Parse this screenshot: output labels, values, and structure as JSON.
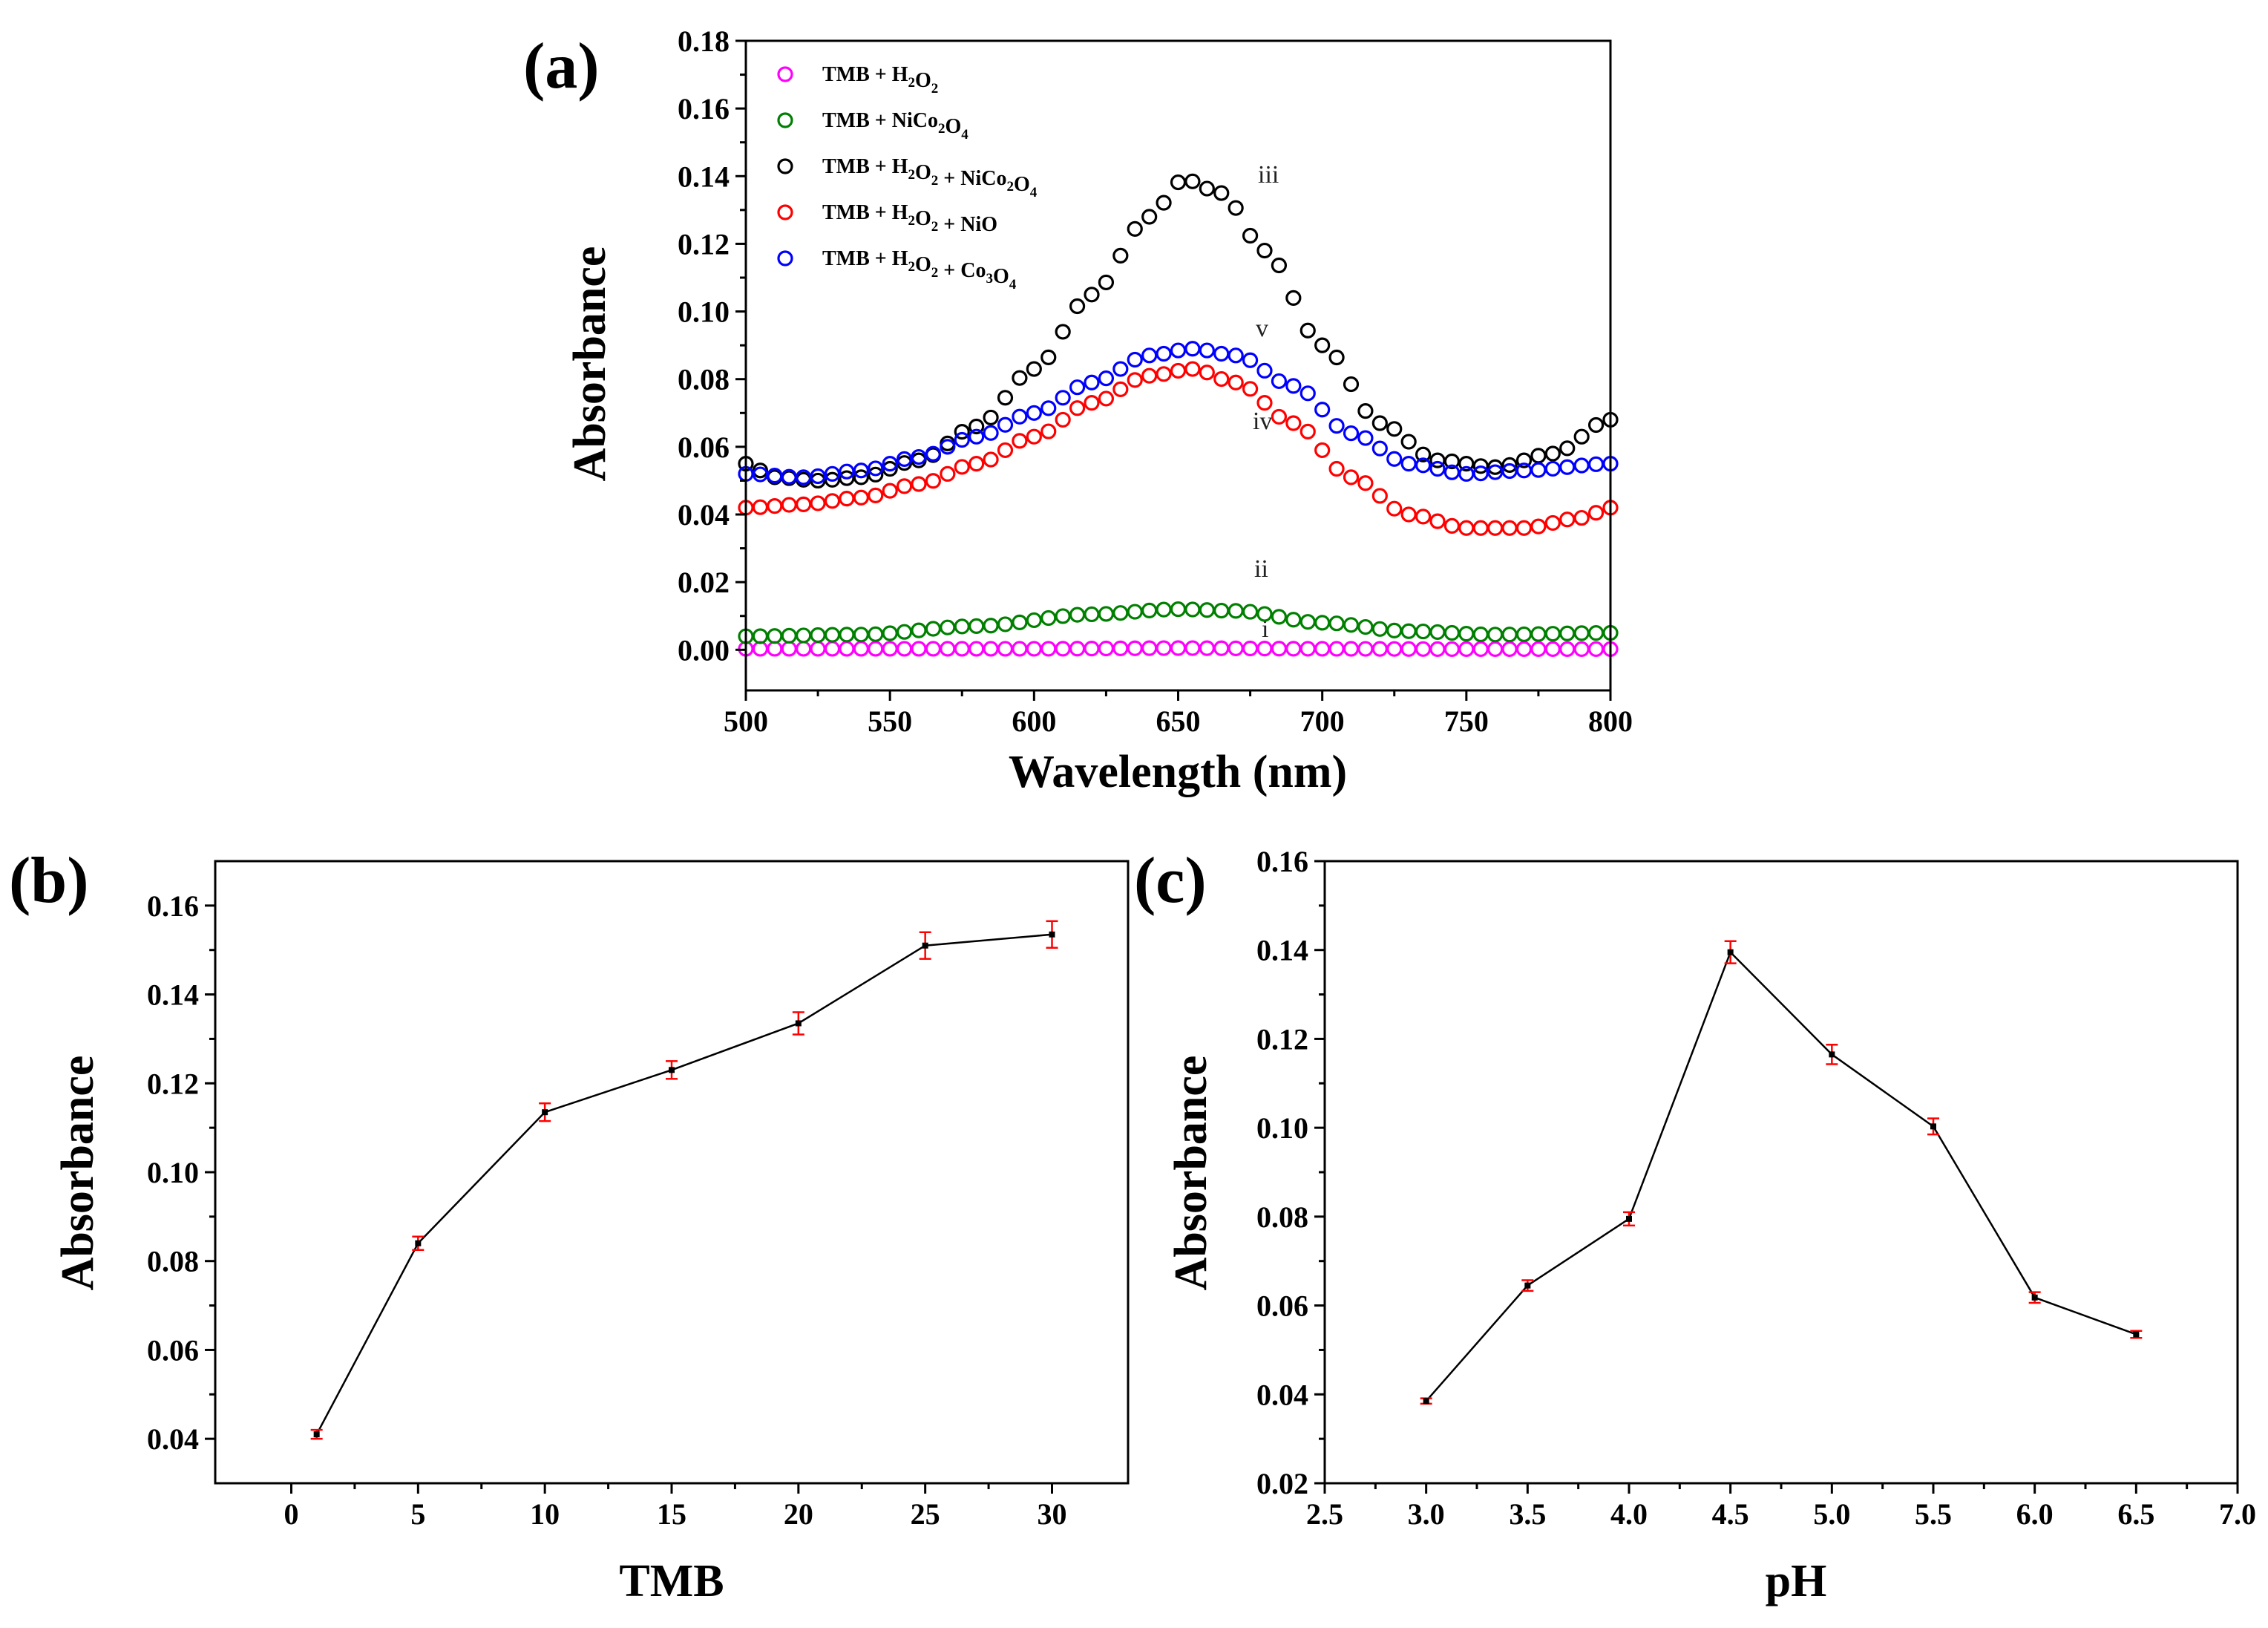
{
  "chart_data": [
    {
      "panel_label": "(a)",
      "type": "scatter",
      "xlabel": "Wavelength (nm)",
      "ylabel": "Absorbance",
      "xlim": [
        500,
        800
      ],
      "ylim": [
        -0.012,
        0.18
      ],
      "xticks": [
        "500",
        "550",
        "600",
        "650",
        "700",
        "750",
        "800"
      ],
      "yticks": [
        "0.00",
        "0.02",
        "0.04",
        "0.06",
        "0.08",
        "0.10",
        "0.12",
        "0.14",
        "0.16",
        "0.18"
      ],
      "series": [
        {
          "name": "TMB + H2O2",
          "legend_main": "TMB + H",
          "legend_sub": [
            "2",
            "O",
            "2"
          ],
          "label": "i",
          "color": "#ff00ff",
          "anchors": [
            [
              500,
              0.0003
            ],
            [
              550,
              0.0003
            ],
            [
              600,
              0.0003
            ],
            [
              650,
              0.0005
            ],
            [
              700,
              0.0003
            ],
            [
              750,
              0.0002
            ],
            [
              800,
              0.0002
            ]
          ]
        },
        {
          "name": "TMB + NiCo2O4",
          "label": "ii",
          "color": "#008000",
          "anchors": [
            [
              500,
              0.004
            ],
            [
              540,
              0.0045
            ],
            [
              580,
              0.007
            ],
            [
              620,
              0.0105
            ],
            [
              650,
              0.012
            ],
            [
              670,
              0.0115
            ],
            [
              700,
              0.008
            ],
            [
              730,
              0.0055
            ],
            [
              760,
              0.0045
            ],
            [
              800,
              0.005
            ]
          ]
        },
        {
          "name": "TMB + H2O2 + NiCo2O4",
          "label": "iii",
          "color": "#000000",
          "anchors": [
            [
              500,
              0.055
            ],
            [
              510,
              0.051
            ],
            [
              525,
              0.05
            ],
            [
              540,
              0.051
            ],
            [
              560,
              0.056
            ],
            [
              580,
              0.066
            ],
            [
              600,
              0.083
            ],
            [
              620,
              0.105
            ],
            [
              640,
              0.128
            ],
            [
              652,
              0.139
            ],
            [
              665,
              0.135
            ],
            [
              680,
              0.118
            ],
            [
              700,
              0.09
            ],
            [
              720,
              0.067
            ],
            [
              740,
              0.056
            ],
            [
              760,
              0.054
            ],
            [
              780,
              0.058
            ],
            [
              800,
              0.068
            ]
          ]
        },
        {
          "name": "TMB + H2O2 + NiO",
          "label": "iv",
          "color": "#ff0000",
          "anchors": [
            [
              500,
              0.042
            ],
            [
              520,
              0.043
            ],
            [
              540,
              0.045
            ],
            [
              560,
              0.049
            ],
            [
              580,
              0.055
            ],
            [
              600,
              0.063
            ],
            [
              620,
              0.073
            ],
            [
              640,
              0.081
            ],
            [
              655,
              0.083
            ],
            [
              670,
              0.079
            ],
            [
              690,
              0.067
            ],
            [
              710,
              0.051
            ],
            [
              730,
              0.04
            ],
            [
              750,
              0.036
            ],
            [
              770,
              0.036
            ],
            [
              790,
              0.039
            ],
            [
              800,
              0.042
            ]
          ]
        },
        {
          "name": "TMB + H2O2 + Co3O4",
          "label": "v",
          "color": "#0000ff",
          "anchors": [
            [
              500,
              0.052
            ],
            [
              520,
              0.051
            ],
            [
              540,
              0.053
            ],
            [
              560,
              0.057
            ],
            [
              580,
              0.063
            ],
            [
              600,
              0.07
            ],
            [
              620,
              0.079
            ],
            [
              640,
              0.087
            ],
            [
              655,
              0.089
            ],
            [
              670,
              0.087
            ],
            [
              690,
              0.078
            ],
            [
              710,
              0.064
            ],
            [
              730,
              0.055
            ],
            [
              750,
              0.052
            ],
            [
              770,
              0.053
            ],
            [
              800,
              0.055
            ]
          ]
        }
      ]
    },
    {
      "panel_label": "(b)",
      "type": "line",
      "xlabel": "TMB",
      "ylabel": "Absorbance",
      "xlim": [
        -3,
        33
      ],
      "ylim": [
        0.03,
        0.17
      ],
      "xticks": [
        "0",
        "5",
        "10",
        "15",
        "20",
        "25",
        "30"
      ],
      "yticks": [
        "0.04",
        "0.06",
        "0.08",
        "0.10",
        "0.12",
        "0.14",
        "0.16"
      ],
      "x": [
        1,
        5,
        10,
        15,
        20,
        25,
        30
      ],
      "y": [
        0.041,
        0.084,
        0.1135,
        0.123,
        0.1335,
        0.151,
        0.1535
      ],
      "err": [
        0.001,
        0.0015,
        0.002,
        0.002,
        0.0025,
        0.003,
        0.003
      ]
    },
    {
      "panel_label": "(c)",
      "type": "line",
      "xlabel": "pH",
      "ylabel": "Absorbance",
      "xlim": [
        2.5,
        7.0
      ],
      "ylim": [
        0.02,
        0.16
      ],
      "xticks": [
        "2.5",
        "3.0",
        "3.5",
        "4.0",
        "4.5",
        "5.0",
        "5.5",
        "6.0",
        "6.5",
        "7.0"
      ],
      "yticks": [
        "0.02",
        "0.04",
        "0.06",
        "0.08",
        "0.10",
        "0.12",
        "0.14",
        "0.16"
      ],
      "x": [
        3.0,
        3.5,
        4.0,
        4.5,
        5.0,
        5.5,
        6.0,
        6.5
      ],
      "y": [
        0.0385,
        0.0645,
        0.0795,
        0.1395,
        0.1165,
        0.1003,
        0.0618,
        0.0535
      ],
      "err": [
        0.0006,
        0.0012,
        0.0015,
        0.0025,
        0.0022,
        0.0018,
        0.0012,
        0.0008
      ]
    }
  ]
}
